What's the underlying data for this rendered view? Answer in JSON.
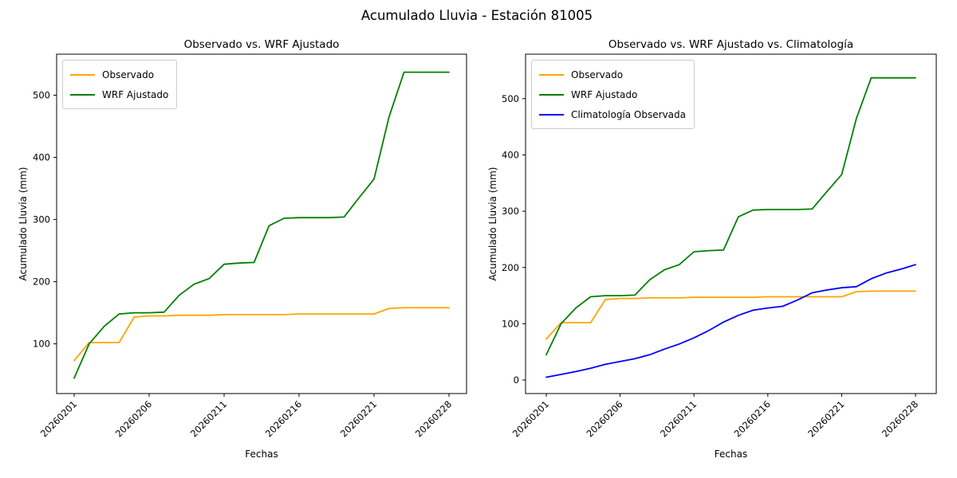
{
  "figure": {
    "title": "Acumulado Lluvia - Estación 81005",
    "background": "#ffffff",
    "axis_color": "#000000",
    "legend_border_color": "#cccccc"
  },
  "chart_data": [
    {
      "type": "line",
      "title": "Observado vs. WRF Ajustado",
      "xlabel": "Fechas",
      "ylabel": "Acumulado Lluvia (mm)",
      "x_count": 26,
      "x_tick_indices": [
        0,
        5,
        10,
        15,
        20,
        25
      ],
      "x_tick_labels": [
        "20260201",
        "20260206",
        "20260211",
        "20260216",
        "20260221",
        "20260228"
      ],
      "x_tick_rotation": 45,
      "yticks": [
        100,
        200,
        300,
        400,
        500
      ],
      "ylim": [
        20,
        566
      ],
      "grid": false,
      "legend_position": "upper left",
      "series": [
        {
          "name": "Observado",
          "color": "#FFA500",
          "values": [
            73,
            102,
            102,
            102,
            143,
            145,
            145,
            146,
            146,
            146,
            147,
            147,
            147,
            147,
            147,
            148,
            148,
            148,
            148,
            148,
            148,
            157,
            158,
            158,
            158,
            158
          ]
        },
        {
          "name": "WRF Ajustado",
          "color": "#008000",
          "values": [
            45,
            100,
            128,
            148,
            150,
            150,
            151,
            178,
            196,
            205,
            228,
            230,
            231,
            290,
            302,
            303,
            303,
            303,
            304,
            335,
            365,
            465,
            537,
            537,
            537,
            537
          ]
        }
      ]
    },
    {
      "type": "line",
      "title": "Observado vs. WRF Ajustado vs. Climatología",
      "xlabel": "Fechas",
      "ylabel": "Acumulado Lluvia (mm)",
      "x_count": 26,
      "x_tick_indices": [
        0,
        5,
        10,
        15,
        20,
        25
      ],
      "x_tick_labels": [
        "20260201",
        "20260206",
        "20260211",
        "20260216",
        "20260221",
        "20260228"
      ],
      "x_tick_rotation": 45,
      "yticks": [
        0,
        100,
        200,
        300,
        400,
        500
      ],
      "ylim": [
        -24,
        579
      ],
      "grid": false,
      "legend_position": "upper left",
      "series": [
        {
          "name": "Observado",
          "color": "#FFA500",
          "values": [
            73,
            102,
            102,
            102,
            143,
            145,
            145,
            146,
            146,
            146,
            147,
            147,
            147,
            147,
            147,
            148,
            148,
            148,
            148,
            148,
            148,
            157,
            158,
            158,
            158,
            158
          ]
        },
        {
          "name": "WRF Ajustado",
          "color": "#008000",
          "values": [
            45,
            100,
            128,
            148,
            150,
            150,
            151,
            178,
            196,
            205,
            228,
            230,
            231,
            290,
            302,
            303,
            303,
            303,
            304,
            335,
            365,
            465,
            537,
            537,
            537,
            537
          ]
        },
        {
          "name": "Climatología Observada",
          "color": "#0000FF",
          "values": [
            5,
            10,
            15,
            21,
            28,
            33,
            38,
            45,
            55,
            64,
            75,
            88,
            103,
            115,
            124,
            128,
            131,
            142,
            155,
            160,
            164,
            166,
            180,
            190,
            197,
            205
          ]
        }
      ]
    }
  ]
}
